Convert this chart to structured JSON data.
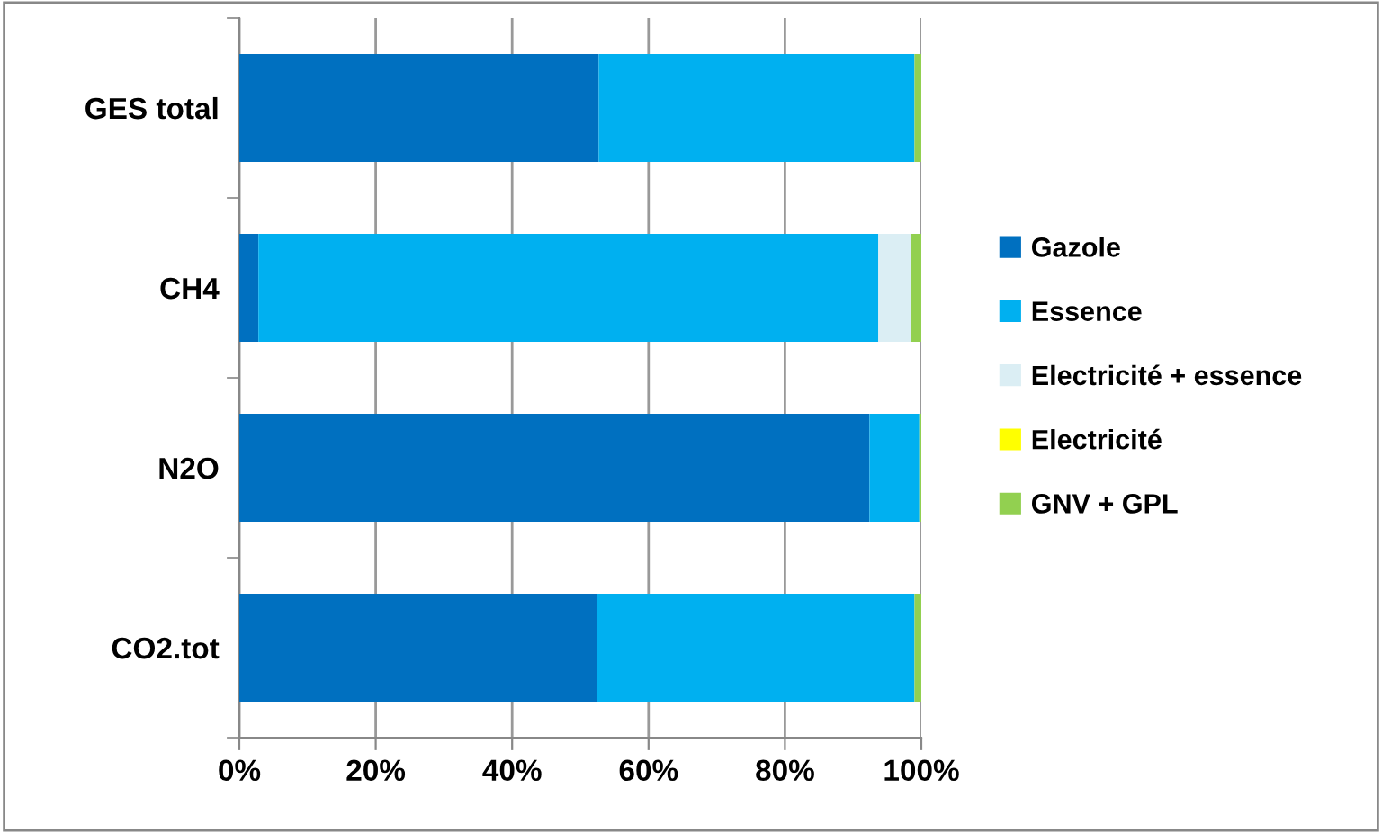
{
  "chart_data": {
    "type": "bar",
    "orientation": "horizontal",
    "stacked": true,
    "categories": [
      "GES total",
      "CH4",
      "N2O",
      "CO2.tot"
    ],
    "series": [
      {
        "name": "Gazole",
        "color": "#0070c0",
        "values": [
          52.7,
          2.8,
          92.4,
          52.4
        ]
      },
      {
        "name": "Essence",
        "color": "#00b0f0",
        "values": [
          46.3,
          90.9,
          7.3,
          46.6
        ]
      },
      {
        "name": "Electricité + essence",
        "color": "#dbeef4",
        "values": [
          0,
          4.8,
          0,
          0
        ]
      },
      {
        "name": "Electricité",
        "color": "#ffff00",
        "values": [
          0,
          0,
          0,
          0
        ]
      },
      {
        "name": "GNV + GPL",
        "color": "#92d050",
        "values": [
          1.0,
          1.5,
          0.3,
          1.0
        ]
      }
    ],
    "xlim": [
      0,
      100
    ],
    "xticks": [
      {
        "value": 0,
        "label": "0%"
      },
      {
        "value": 20,
        "label": "20%"
      },
      {
        "value": 40,
        "label": "40%"
      },
      {
        "value": 60,
        "label": "60%"
      },
      {
        "value": 80,
        "label": "80%"
      },
      {
        "value": 100,
        "label": "100%"
      }
    ],
    "grid": "x",
    "legend": "right"
  }
}
